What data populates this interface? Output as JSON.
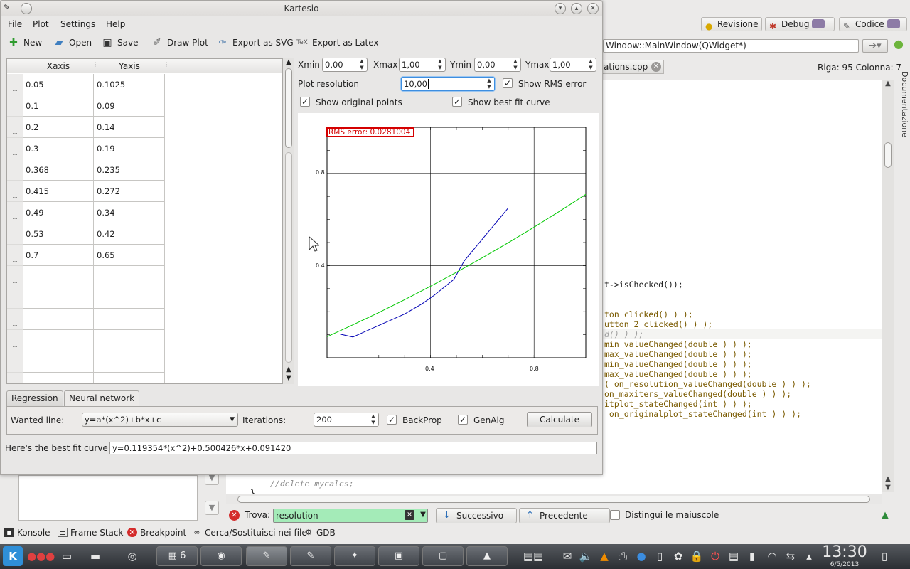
{
  "ide": {
    "tabs": [
      {
        "label": "Revisione",
        "icon": "lamp-icon"
      },
      {
        "label": "Debug",
        "icon": "bug-icon"
      },
      {
        "label": "Codice",
        "icon": "edit-icon"
      }
    ],
    "function_selector": "Window::MainWindow(QWidget*)",
    "file_tab": "ations.cpp",
    "cursor_position": "Riga: 95 Colonna: 7",
    "side_panel": "Documentazione",
    "code_lines": [
      {
        "text": "t->isChecked());",
        "style": "plain"
      },
      {
        "text": "ton_clicked() ) );",
        "style": "fn"
      },
      {
        "text": "utton_2_clicked() ) );",
        "style": "fn"
      },
      {
        "text": "d() ) );",
        "style": "comment"
      },
      {
        "text": "min_valueChanged(double ) ) );",
        "style": "fn"
      },
      {
        "text": "max_valueChanged(double ) ) );",
        "style": "fn"
      },
      {
        "text": "min_valueChanged(double ) ) );",
        "style": "fn"
      },
      {
        "text": "max_valueChanged(double ) ) );",
        "style": "fn"
      },
      {
        "text": "( on_resolution_valueChanged(double ) ) );",
        "style": "fn"
      },
      {
        "text": "on_maxiters_valueChanged(double ) ) );",
        "style": "fn"
      },
      {
        "text": "itplot_stateChanged(int ) ) );",
        "style": "fn"
      },
      {
        "text": " on_originalplot_stateChanged(int ) ) );",
        "style": "fn"
      }
    ],
    "bottom_code": [
      "//delete mycalcs;",
      "}"
    ],
    "find": {
      "label": "Trova:",
      "value": "resolution",
      "next": "Successivo",
      "prev": "Precedente",
      "case": "Distingui le maiuscole"
    },
    "status_items": [
      {
        "label": "Konsole",
        "icon": "terminal-icon"
      },
      {
        "label": "Frame Stack",
        "icon": "stack-icon"
      },
      {
        "label": "Breakpoint",
        "icon": "breakpoint-icon"
      },
      {
        "label": "Cerca/Sostituisci nei file",
        "icon": "binoculars-icon"
      },
      {
        "label": "GDB",
        "icon": "gdb-icon"
      }
    ]
  },
  "taskbar": {
    "time": "13:30",
    "date": "6/5/2013"
  },
  "window": {
    "title": "Kartesio",
    "menu": [
      "File",
      "Plot",
      "Settings",
      "Help"
    ],
    "toolbar": [
      {
        "label": "New",
        "icon": "new-icon"
      },
      {
        "label": "Open",
        "icon": "folder-open-icon"
      },
      {
        "label": "Save",
        "icon": "save-icon"
      },
      {
        "label": "Draw Plot",
        "icon": "draw-plot-icon"
      },
      {
        "label": "Export as SVG",
        "icon": "export-svg-icon"
      },
      {
        "label": "Export as Latex",
        "icon": "export-latex-icon"
      }
    ],
    "table": {
      "headers": [
        "Xaxis",
        "Yaxis"
      ],
      "rows": [
        [
          "0.05",
          "0.1025"
        ],
        [
          "0.1",
          "0.09"
        ],
        [
          "0.2",
          "0.14"
        ],
        [
          "0.3",
          "0.19"
        ],
        [
          "0.368",
          "0.235"
        ],
        [
          "0.415",
          "0.272"
        ],
        [
          "0.49",
          "0.34"
        ],
        [
          "0.53",
          "0.42"
        ],
        [
          "0.7",
          "0.65"
        ],
        [
          "",
          ""
        ],
        [
          "",
          ""
        ],
        [
          "",
          ""
        ],
        [
          "",
          ""
        ],
        [
          "",
          ""
        ],
        [
          "",
          ""
        ]
      ]
    },
    "controls": {
      "xmin_label": "Xmin",
      "xmin": "0,00",
      "xmax_label": "Xmax",
      "xmax": "1,00",
      "ymin_label": "Ymin",
      "ymin": "0,00",
      "ymax_label": "Ymax",
      "ymax": "1,00",
      "resolution_label": "Plot resolution",
      "resolution": "10,00",
      "show_rms": "Show RMS error",
      "show_original": "Show original points",
      "show_bestfit": "Show best fit curve"
    },
    "plot": {
      "rms_label": "RMS error: 0.0281004",
      "x_ticks": [
        "0.4",
        "0.8"
      ],
      "y_ticks": [
        "0.8",
        "0.4"
      ]
    },
    "tabs": [
      "Regression",
      "Neural network"
    ],
    "neural": {
      "wanted_line_label": "Wanted line:",
      "wanted_line": "y=a*(x^2)+b*x+c",
      "iterations_label": "Iterations:",
      "iterations": "200",
      "backprop": "BackProp",
      "genalg": "GenAlg",
      "calculate": "Calculate"
    },
    "bestfit_label": "Here's the best fit curve:",
    "bestfit_value": "y=0.119354*(x^2)+0.500426*x+0.091420"
  },
  "chart_data": {
    "type": "line",
    "title": "",
    "xlabel": "",
    "ylabel": "",
    "xlim": [
      0,
      1
    ],
    "ylim": [
      0,
      1
    ],
    "grid": true,
    "series": [
      {
        "color": "#0000b4",
        "x": [
          0.05,
          0.1,
          0.2,
          0.3,
          0.368,
          0.415,
          0.49,
          0.53,
          0.7
        ],
        "y": [
          0.1025,
          0.09,
          0.14,
          0.19,
          0.235,
          0.272,
          0.34,
          0.42,
          0.65
        ]
      },
      {
        "color": "#00c800",
        "x": [
          0.0,
          0.1,
          0.2,
          0.3,
          0.4,
          0.5,
          0.6,
          0.7,
          0.8,
          0.9,
          1.0
        ],
        "y": [
          0.0914,
          0.1428,
          0.1963,
          0.2522,
          0.3104,
          0.3709,
          0.4338,
          0.499,
          0.5666,
          0.6366,
          0.7088
        ]
      }
    ]
  }
}
